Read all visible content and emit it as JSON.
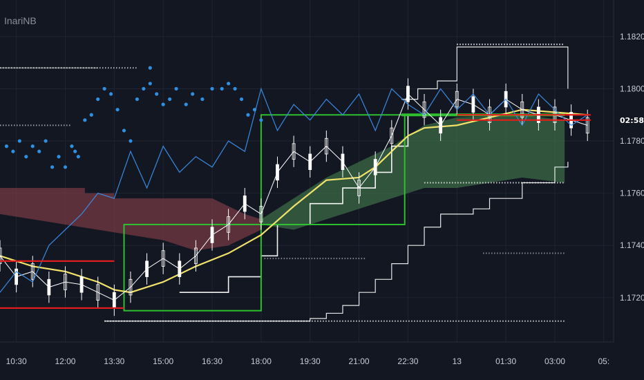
{
  "chart_title": "InariNB",
  "countdown": "02:58",
  "colors": {
    "background": "#131722",
    "grid": "#1f2433",
    "price_line": "#e11c1c",
    "ema": "#f0e26a",
    "rsi_line": "#3b8ee8",
    "dots": "#2f8fe0",
    "green_box": "#2ec02e",
    "cloud_bull": "#3c6b45",
    "cloud_bear": "#7a3c45",
    "white": "#ffffff"
  },
  "chart_data": {
    "type": "line",
    "title": "InariNB",
    "y_axis": {
      "ticks": [
        1.172,
        1.174,
        1.176,
        1.178,
        1.18,
        1.182
      ],
      "tick_labels": [
        "1.1720",
        "1.1740",
        "1.1760",
        "1.1780",
        "1.1800",
        "1.1820"
      ],
      "ylim": [
        1.1703,
        1.1834
      ]
    },
    "x_axis": {
      "tick_labels": [
        "10:30",
        "12:00",
        "13:30",
        "15:00",
        "16:30",
        "18:00",
        "19:30",
        "21:00",
        "22:30",
        "13",
        "01:30",
        "03:00",
        "05:"
      ],
      "tick_hours": [
        10.5,
        12,
        13.5,
        15,
        16.5,
        18,
        19.5,
        21,
        22.5,
        24,
        25.5,
        27,
        28.5
      ],
      "xlim": [
        10,
        28.8
      ]
    },
    "current_price": 1.1788,
    "series": [
      {
        "name": "",
        "kind": "ema",
        "x": [
          10,
          11,
          12,
          13,
          13.5,
          14,
          15,
          16,
          17,
          18,
          19,
          20,
          21,
          21.5,
          22,
          22.5,
          23,
          24,
          25,
          26,
          27,
          28
        ],
        "y": [
          1.1736,
          1.1732,
          1.173,
          1.1726,
          1.1723,
          1.1722,
          1.1726,
          1.1732,
          1.1737,
          1.1744,
          1.1755,
          1.1765,
          1.1766,
          1.177,
          1.1776,
          1.1782,
          1.1785,
          1.1786,
          1.1789,
          1.1792,
          1.1791,
          1.179
        ]
      },
      {
        "name": "",
        "kind": "price",
        "x": [
          10,
          10.5,
          11,
          11.5,
          12,
          12.5,
          13,
          13.5,
          14,
          14.5,
          15,
          15.5,
          16,
          16.5,
          17,
          17.5,
          18,
          18.5,
          19,
          19.5,
          20,
          20.5,
          21,
          21.5,
          22,
          22.5,
          23,
          23.5,
          24,
          24.5,
          25,
          25.5,
          26,
          26.5,
          27,
          27.5,
          28
        ],
        "y": [
          1.1736,
          1.1728,
          1.173,
          1.1724,
          1.1726,
          1.1725,
          1.1722,
          1.1719,
          1.1724,
          1.1731,
          1.1735,
          1.1731,
          1.1736,
          1.1744,
          1.1748,
          1.1756,
          1.1752,
          1.1768,
          1.1776,
          1.1772,
          1.1778,
          1.1772,
          1.1762,
          1.177,
          1.1782,
          1.1798,
          1.1792,
          1.1786,
          1.1796,
          1.1794,
          1.179,
          1.1796,
          1.1792,
          1.179,
          1.179,
          1.1788,
          1.1786
        ]
      },
      {
        "name": "",
        "kind": "rsi",
        "x": [
          10,
          10.5,
          11,
          11.5,
          12,
          12.5,
          13,
          13.5,
          14,
          14.5,
          15,
          15.5,
          16,
          16.5,
          17,
          17.5,
          18,
          18.5,
          19,
          19.5,
          20,
          20.5,
          21,
          21.5,
          22,
          22.5,
          23,
          23.5,
          24,
          24.5,
          25,
          25.5,
          26,
          26.5,
          27,
          27.5,
          28
        ],
        "y": [
          1.1722,
          1.173,
          1.1726,
          1.174,
          1.1746,
          1.1752,
          1.176,
          1.1758,
          1.1776,
          1.1762,
          1.1778,
          1.1768,
          1.1774,
          1.177,
          1.178,
          1.1776,
          1.18,
          1.1784,
          1.1794,
          1.1788,
          1.1796,
          1.179,
          1.1798,
          1.1784,
          1.18,
          1.1794,
          1.179,
          1.18,
          1.1792,
          1.1798,
          1.179,
          1.1796,
          1.1786,
          1.1798,
          1.1792,
          1.1786,
          1.179
        ]
      }
    ]
  }
}
